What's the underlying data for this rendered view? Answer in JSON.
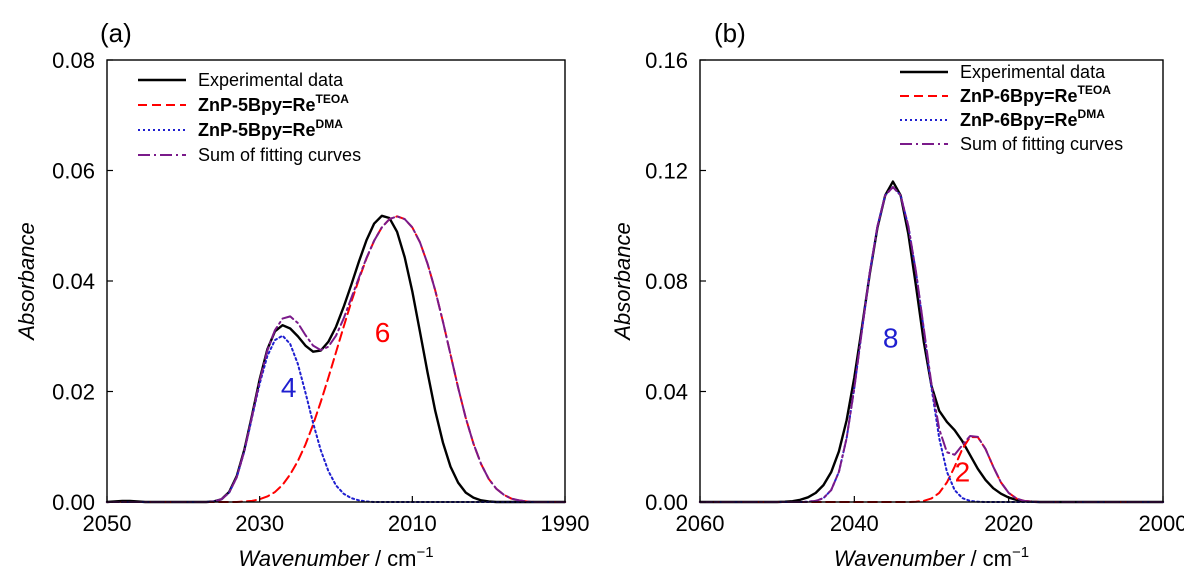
{
  "chart_data": [
    {
      "type": "line",
      "panel_label": "(a)",
      "xlabel_italic": "Wavenumber",
      "xlabel_unit": " / cm",
      "xlabel_sup": "−1",
      "ylabel": "Absorbance",
      "xlim": [
        2050,
        1990
      ],
      "ylim": [
        0,
        0.08
      ],
      "x_ticks": [
        2050,
        2030,
        2010,
        1990
      ],
      "x_tick_labels": [
        "2050",
        "2030",
        "2010",
        "1990"
      ],
      "y_ticks": [
        0,
        0.02,
        0.04,
        0.06,
        0.08
      ],
      "y_tick_labels": [
        "0.00",
        "0.02",
        "0.04",
        "0.06",
        "0.08"
      ],
      "grid": false,
      "legend_position": "top-left",
      "legend": [
        {
          "base": "Experimental data",
          "sup": "",
          "bold": false,
          "color": "#000000",
          "dash": ""
        },
        {
          "base": "ZnP-5Bpy=Re",
          "sup": "TEOA",
          "bold": true,
          "color": "#ff0000",
          "dash": "9 5"
        },
        {
          "base": "ZnP-5Bpy=Re",
          "sup": "DMA",
          "bold": true,
          "color": "#1f1fd0",
          "dash": "2 3"
        },
        {
          "base": "Sum of fitting curves",
          "sup": "",
          "bold": false,
          "color": "#7a1a8a",
          "dash": "12 4 2 4"
        }
      ],
      "annotations": [
        {
          "text": "4",
          "x": 2026.2,
          "y": 0.019,
          "color": "#1f1fd0"
        },
        {
          "text": "6",
          "x": 2013.9,
          "y": 0.029,
          "color": "#ff0000"
        }
      ],
      "x": [
        2050,
        2049,
        2048,
        2047,
        2046,
        2045,
        2044,
        2043,
        2042,
        2041,
        2040,
        2039,
        2038,
        2037,
        2036,
        2035,
        2034,
        2033,
        2032,
        2031,
        2030,
        2029,
        2028,
        2027,
        2026,
        2025,
        2024,
        2023,
        2022,
        2021,
        2020,
        2019,
        2018,
        2017,
        2016,
        2015,
        2014,
        2013,
        2012,
        2011,
        2010,
        2009,
        2008,
        2007,
        2006,
        2005,
        2004,
        2003,
        2002,
        2001,
        2000,
        1999,
        1998,
        1997,
        1996,
        1995,
        1994,
        1993,
        1992,
        1991,
        1990
      ],
      "series": [
        {
          "name": "Experimental data",
          "color": "#000000",
          "width": 2.4,
          "dash": "",
          "values": [
            0,
            0.0001,
            0.0002,
            0.0002,
            0.0001,
            0,
            0,
            0,
            0,
            0,
            0,
            0,
            0,
            0,
            0.0001,
            0.0005,
            0.0018,
            0.0047,
            0.0095,
            0.0157,
            0.0222,
            0.0276,
            0.0309,
            0.032,
            0.0314,
            0.03,
            0.0283,
            0.0272,
            0.0274,
            0.029,
            0.0317,
            0.0353,
            0.0393,
            0.0435,
            0.0474,
            0.0504,
            0.0518,
            0.0514,
            0.0489,
            0.0443,
            0.0381,
            0.0308,
            0.0234,
            0.0165,
            0.0108,
            0.0064,
            0.0035,
            0.0017,
            0.0008,
            0.0003,
            0.0001,
            0,
            0,
            0,
            0,
            0,
            0,
            0,
            0,
            0,
            0
          ]
        },
        {
          "name": "ZnP-5Bpy=ReTEOA",
          "color": "#ff0000",
          "width": 2,
          "dash": "9 5",
          "values": [
            0,
            0,
            0,
            0,
            0,
            0,
            0,
            0,
            0,
            0,
            0,
            0,
            0,
            0,
            0,
            0,
            0,
            0,
            0.0001,
            0.0002,
            0.0005,
            0.001,
            0.0018,
            0.0031,
            0.005,
            0.0074,
            0.0104,
            0.014,
            0.0181,
            0.0225,
            0.0271,
            0.0317,
            0.0362,
            0.0403,
            0.0441,
            0.0473,
            0.0497,
            0.0512,
            0.0517,
            0.0512,
            0.0497,
            0.047,
            0.0431,
            0.0383,
            0.0327,
            0.0267,
            0.0207,
            0.0152,
            0.0106,
            0.0069,
            0.0042,
            0.0024,
            0.0013,
            0.0006,
            0.0003,
            0.0001,
            0,
            0,
            0,
            0,
            0
          ]
        },
        {
          "name": "ZnP-5Bpy=ReDMA",
          "color": "#1f1fd0",
          "width": 2,
          "dash": "2 3",
          "values": [
            0,
            0,
            0,
            0,
            0,
            0,
            0,
            0,
            0,
            0,
            0,
            0,
            0,
            0,
            0.0001,
            0.0005,
            0.0017,
            0.0045,
            0.0092,
            0.0153,
            0.0214,
            0.0264,
            0.0293,
            0.0301,
            0.0286,
            0.025,
            0.0198,
            0.0143,
            0.0094,
            0.0056,
            0.003,
            0.0015,
            0.0007,
            0.0003,
            0.0001,
            0,
            0,
            0,
            0,
            0,
            0,
            0,
            0,
            0,
            0,
            0,
            0,
            0,
            0,
            0,
            0,
            0,
            0,
            0,
            0,
            0,
            0,
            0,
            0,
            0,
            0
          ]
        },
        {
          "name": "Sum of fitting curves",
          "color": "#7a1a8a",
          "width": 2,
          "dash": "12 4 2 4",
          "values": [
            0,
            0,
            0,
            0,
            0,
            0,
            0,
            0,
            0,
            0,
            0,
            0,
            0,
            0,
            0.0001,
            0.0005,
            0.0017,
            0.0045,
            0.0093,
            0.0155,
            0.0219,
            0.0274,
            0.0311,
            0.0332,
            0.0336,
            0.0324,
            0.0302,
            0.0283,
            0.0275,
            0.0281,
            0.0301,
            0.0332,
            0.0369,
            0.0406,
            0.0442,
            0.0473,
            0.0497,
            0.0512,
            0.0517,
            0.0512,
            0.0497,
            0.047,
            0.0431,
            0.0383,
            0.0327,
            0.0267,
            0.0207,
            0.0152,
            0.0106,
            0.0069,
            0.0042,
            0.0024,
            0.0013,
            0.0006,
            0.0003,
            0.0001,
            0,
            0,
            0,
            0,
            0
          ]
        }
      ]
    },
    {
      "type": "line",
      "panel_label": "(b)",
      "xlabel_italic": "Wavenumber",
      "xlabel_unit": " / cm",
      "xlabel_sup": "−1",
      "ylabel": "Absorbance",
      "xlim": [
        2060,
        2000
      ],
      "ylim": [
        0,
        0.16
      ],
      "x_ticks": [
        2060,
        2040,
        2020,
        2000
      ],
      "x_tick_labels": [
        "2060",
        "2040",
        "2020",
        "2000"
      ],
      "y_ticks": [
        0,
        0.04,
        0.08,
        0.12,
        0.16
      ],
      "y_tick_labels": [
        "0.00",
        "0.04",
        "0.08",
        "0.12",
        "0.16"
      ],
      "grid": false,
      "legend_position": "top-right",
      "legend": [
        {
          "base": "Experimental data",
          "sup": "",
          "bold": false,
          "color": "#000000",
          "dash": ""
        },
        {
          "base": "ZnP-6Bpy=Re",
          "sup": "TEOA",
          "bold": true,
          "color": "#ff0000",
          "dash": "9 5"
        },
        {
          "base": "ZnP-6Bpy=Re",
          "sup": "DMA",
          "bold": true,
          "color": "#1f1fd0",
          "dash": "2 3"
        },
        {
          "base": "Sum of fitting curves",
          "sup": "",
          "bold": false,
          "color": "#7a1a8a",
          "dash": "12 4 2 4"
        }
      ],
      "annotations": [
        {
          "text": "8",
          "x": 2035.3,
          "y": 0.056,
          "color": "#1f1fd0"
        },
        {
          "text": "2",
          "x": 2026.0,
          "y": 0.0075,
          "color": "#ff0000"
        }
      ],
      "x": [
        2060,
        2059,
        2058,
        2057,
        2056,
        2055,
        2054,
        2053,
        2052,
        2051,
        2050,
        2049,
        2048,
        2047,
        2046,
        2045,
        2044,
        2043,
        2042,
        2041,
        2040,
        2039,
        2038,
        2037,
        2036,
        2035,
        2034,
        2033,
        2032,
        2031,
        2030,
        2029,
        2028,
        2027,
        2026,
        2025,
        2024,
        2023,
        2022,
        2021,
        2020,
        2019,
        2018,
        2017,
        2016,
        2015,
        2014,
        2013,
        2012,
        2011,
        2010,
        2009,
        2008,
        2007,
        2006,
        2005,
        2004,
        2003,
        2002,
        2001,
        2000
      ],
      "series": [
        {
          "name": "Experimental data",
          "color": "#000000",
          "width": 2.4,
          "dash": "",
          "values": [
            0,
            0,
            0,
            0,
            0,
            0,
            0,
            0,
            0,
            0,
            0,
            0.0001,
            0.0003,
            0.0008,
            0.0017,
            0.0033,
            0.0061,
            0.0108,
            0.0183,
            0.0296,
            0.0451,
            0.0635,
            0.0826,
            0.0994,
            0.111,
            0.116,
            0.111,
            0.097,
            0.078,
            0.058,
            0.042,
            0.033,
            0.029,
            0.026,
            0.022,
            0.017,
            0.012,
            0.008,
            0.005,
            0.003,
            0.0016,
            0.0008,
            0.0003,
            0.0001,
            0,
            0,
            0,
            0,
            0,
            0,
            0,
            0,
            0,
            0,
            0,
            0,
            0,
            0,
            0,
            0,
            0
          ]
        },
        {
          "name": "ZnP-6Bpy=ReTEOA",
          "color": "#ff0000",
          "width": 2,
          "dash": "9 5",
          "values": [
            0,
            0,
            0,
            0,
            0,
            0,
            0,
            0,
            0,
            0,
            0,
            0,
            0,
            0,
            0,
            0,
            0,
            0,
            0,
            0,
            0,
            0,
            0,
            0,
            0,
            0,
            0,
            0,
            0.0001,
            0.0004,
            0.0013,
            0.0033,
            0.0071,
            0.0128,
            0.0192,
            0.0235,
            0.0235,
            0.0192,
            0.0128,
            0.0071,
            0.0033,
            0.0013,
            0.0004,
            0.0001,
            0,
            0,
            0,
            0,
            0,
            0,
            0,
            0,
            0,
            0,
            0,
            0,
            0,
            0,
            0,
            0,
            0
          ]
        },
        {
          "name": "ZnP-6Bpy=ReDMA",
          "color": "#1f1fd0",
          "width": 2,
          "dash": "2 3",
          "values": [
            0,
            0,
            0,
            0,
            0,
            0,
            0,
            0,
            0,
            0,
            0,
            0,
            0,
            0,
            0.0001,
            0.0004,
            0.0014,
            0.0043,
            0.0109,
            0.0231,
            0.0413,
            0.0624,
            0.083,
            0.0998,
            0.111,
            0.114,
            0.111,
            0.0998,
            0.083,
            0.0624,
            0.0413,
            0.0231,
            0.0109,
            0.0043,
            0.0014,
            0.0004,
            0.0001,
            0,
            0,
            0,
            0,
            0,
            0,
            0,
            0,
            0,
            0,
            0,
            0,
            0,
            0,
            0,
            0,
            0,
            0,
            0,
            0,
            0,
            0,
            0,
            0
          ]
        },
        {
          "name": "Sum of fitting curves",
          "color": "#7a1a8a",
          "width": 2,
          "dash": "12 4 2 4",
          "values": [
            0,
            0,
            0,
            0,
            0,
            0,
            0,
            0,
            0,
            0,
            0,
            0,
            0,
            0,
            0.0001,
            0.0004,
            0.0014,
            0.0043,
            0.0109,
            0.0231,
            0.0413,
            0.0624,
            0.083,
            0.0998,
            0.111,
            0.114,
            0.111,
            0.0998,
            0.0831,
            0.0628,
            0.0426,
            0.0264,
            0.018,
            0.0171,
            0.0206,
            0.0239,
            0.0236,
            0.0192,
            0.0128,
            0.0071,
            0.0033,
            0.0013,
            0.0004,
            0.0001,
            0,
            0,
            0,
            0,
            0,
            0,
            0,
            0,
            0,
            0,
            0,
            0,
            0,
            0,
            0,
            0,
            0
          ]
        }
      ]
    }
  ]
}
